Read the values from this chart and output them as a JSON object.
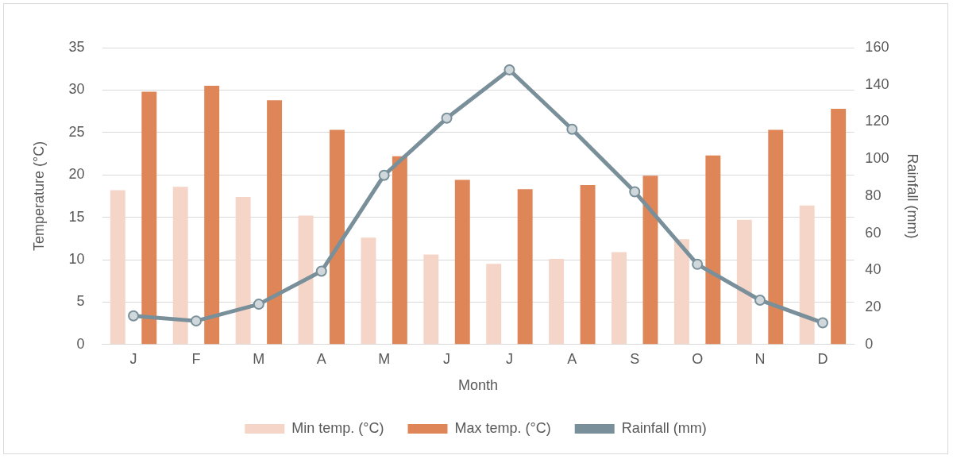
{
  "chart_data": {
    "type": "bar",
    "xlabel": "Month",
    "ylabel": "Temperature (°C)",
    "y2label": "Rainfall (mm)",
    "categories": [
      "J",
      "F",
      "M",
      "A",
      "M",
      "J",
      "J",
      "A",
      "S",
      "O",
      "N",
      "D"
    ],
    "series": [
      {
        "name": "Min temp. (°C)",
        "color": "#f4d5c8",
        "values": [
          18.2,
          18.6,
          17.4,
          15.2,
          12.6,
          10.6,
          9.5,
          10.1,
          10.9,
          12.4,
          14.7,
          16.4
        ]
      },
      {
        "name": "Max temp. (°C)",
        "color": "#df8658",
        "values": [
          29.8,
          30.5,
          28.8,
          25.3,
          22.2,
          19.4,
          18.3,
          18.8,
          19.9,
          22.3,
          25.3,
          27.8
        ]
      },
      {
        "name": "Rainfall (mm)",
        "type": "line",
        "axis": "y2",
        "color": "#798f99",
        "values": [
          15.4,
          12.7,
          21.7,
          39.5,
          91.2,
          122,
          148,
          116,
          82.3,
          43.2,
          23.9,
          11.7
        ]
      }
    ],
    "ylim": [
      0,
      35
    ],
    "yticks": [
      0,
      5,
      10,
      15,
      20,
      25,
      30,
      35
    ],
    "y2lim": [
      0,
      160
    ],
    "y2ticks": [
      0,
      20,
      40,
      60,
      80,
      100,
      120,
      140,
      160
    ],
    "grid": "y",
    "legend": "bottom",
    "marker": "circle",
    "line_style": "solid"
  }
}
